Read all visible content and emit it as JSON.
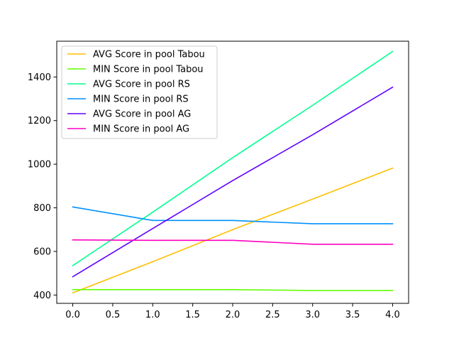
{
  "chart_data": {
    "type": "line",
    "title": "",
    "xlabel": "",
    "ylabel": "",
    "x": [
      0,
      1,
      2,
      3,
      4
    ],
    "xlim": [
      -0.2,
      4.2
    ],
    "ylim": [
      362,
      1564
    ],
    "xticks": [
      0.0,
      0.5,
      1.0,
      1.5,
      2.0,
      2.5,
      3.0,
      3.5,
      4.0
    ],
    "xtick_labels": [
      "0.0",
      "0.5",
      "1.0",
      "1.5",
      "2.0",
      "2.5",
      "3.0",
      "3.5",
      "4.0"
    ],
    "yticks": [
      400,
      600,
      800,
      1000,
      1200,
      1400
    ],
    "ytick_labels": [
      "400",
      "600",
      "800",
      "1000",
      "1200",
      "1400"
    ],
    "grid": false,
    "legend_position": "top-left",
    "series": [
      {
        "name": "AVG Score in pool Tabou",
        "color": "#ffbf00",
        "values": [
          410,
          553,
          700,
          840,
          982
        ]
      },
      {
        "name": "MIN Score in pool Tabou",
        "color": "#60ff00",
        "values": [
          425,
          425,
          425,
          421,
          421
        ]
      },
      {
        "name": "AVG Score in pool RS",
        "color": "#00ff90",
        "values": [
          535,
          780,
          1030,
          1270,
          1517
        ]
      },
      {
        "name": "MIN Score in pool RS",
        "color": "#0090ff",
        "values": [
          804,
          742,
          742,
          727,
          727
        ]
      },
      {
        "name": "AVG Score in pool AG",
        "color": "#6000ff",
        "values": [
          484,
          705,
          925,
          1135,
          1353
        ]
      },
      {
        "name": "MIN Score in pool AG",
        "color": "#ff00c0",
        "values": [
          653,
          651,
          651,
          633,
          633
        ]
      }
    ]
  }
}
